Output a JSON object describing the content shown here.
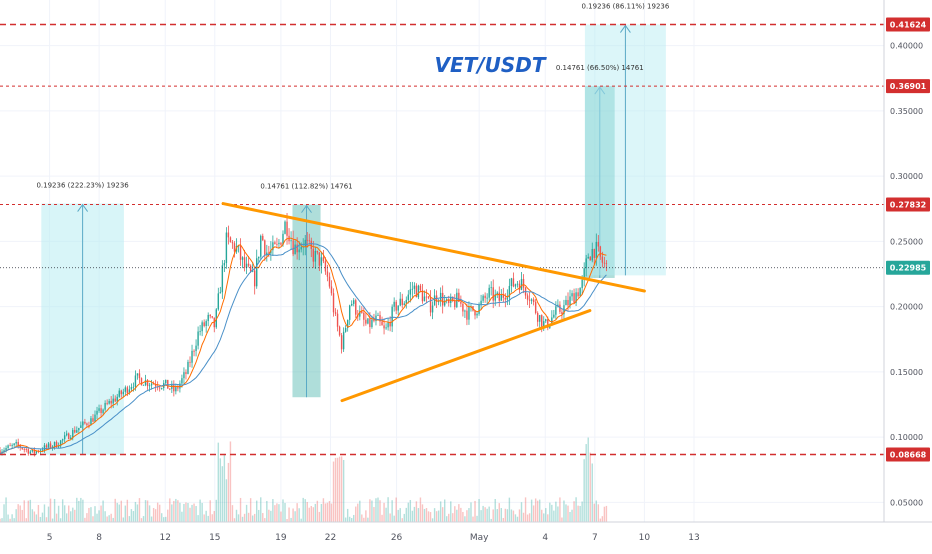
{
  "chart_data": {
    "type": "candlestick",
    "title": "VET/USDT",
    "current_price_label": "0.22985",
    "y_axis": {
      "ylim": [
        0.035,
        0.435
      ],
      "ticks": [
        {
          "value": 0.05,
          "label": "0.05000"
        },
        {
          "value": 0.1,
          "label": "0.10000"
        },
        {
          "value": 0.15,
          "label": "0.15000"
        },
        {
          "value": 0.2,
          "label": "0.20000"
        },
        {
          "value": 0.25,
          "label": "0.25000"
        },
        {
          "value": 0.3,
          "label": "0.30000"
        },
        {
          "value": 0.35,
          "label": "0.35000"
        },
        {
          "value": 0.4,
          "label": "0.40000"
        }
      ]
    },
    "x_axis": {
      "range": [
        2.0,
        55.5
      ],
      "ticks": [
        {
          "day": 5,
          "label": "5"
        },
        {
          "day": 8,
          "label": "8"
        },
        {
          "day": 12,
          "label": "12"
        },
        {
          "day": 15,
          "label": "15"
        },
        {
          "day": 19,
          "label": "19"
        },
        {
          "day": 22,
          "label": "22"
        },
        {
          "day": 26,
          "label": "26"
        },
        {
          "day": 31,
          "label": "May"
        },
        {
          "day": 35,
          "label": "4"
        },
        {
          "day": 38,
          "label": "7"
        },
        {
          "day": 41,
          "label": "10"
        },
        {
          "day": 44,
          "label": "13"
        }
      ]
    },
    "horizontal_levels": [
      {
        "value": 0.41624,
        "label": "0.41624",
        "style": "dashed"
      },
      {
        "value": 0.36901,
        "label": "0.36901",
        "style": "dotted"
      },
      {
        "value": 0.27832,
        "label": "0.27832",
        "style": "dotted"
      },
      {
        "value": 0.08668,
        "label": "0.08668",
        "style": "dashed"
      }
    ],
    "price_ranges": [
      {
        "label": "0.19236 (222.23%) 19236",
        "x_from": 4.5,
        "x_to": 9.5,
        "y_from": 0.0866,
        "y_to": 0.279,
        "fill": "#b2ebf2",
        "opacity": 0.5
      },
      {
        "label": "0.14761 (112.82%) 14761",
        "x_from": 19.7,
        "x_to": 21.4,
        "y_from": 0.1306,
        "y_to": 0.2782,
        "fill": "#4db6ac",
        "opacity": 0.45
      },
      {
        "label": "0.14761 (66.50%) 14761",
        "x_from": 37.4,
        "x_to": 39.2,
        "y_from": 0.222,
        "y_to": 0.369,
        "fill": "#4db6ac",
        "opacity": 0.45
      },
      {
        "label": "0.19236 (86.11%) 19236",
        "x_from": 37.4,
        "x_to": 42.3,
        "y_from": 0.224,
        "y_to": 0.4162,
        "fill": "#b2ebf2",
        "opacity": 0.45
      }
    ],
    "trendlines": [
      {
        "name": "triangle-upper",
        "from": [
          15.5,
          0.279
        ],
        "to": [
          41.0,
          0.212
        ]
      },
      {
        "name": "triangle-lower",
        "from": [
          22.7,
          0.128
        ],
        "to": [
          37.7,
          0.197
        ]
      }
    ],
    "price_path": [
      [
        2.0,
        0.09
      ],
      [
        3.0,
        0.094
      ],
      [
        4.0,
        0.088
      ],
      [
        4.5,
        0.091
      ],
      [
        5.5,
        0.095
      ],
      [
        6.5,
        0.105
      ],
      [
        7.5,
        0.113
      ],
      [
        8.5,
        0.125
      ],
      [
        9.5,
        0.135
      ],
      [
        10.3,
        0.145
      ],
      [
        11.0,
        0.142
      ],
      [
        12.0,
        0.14
      ],
      [
        12.6,
        0.135
      ],
      [
        13.3,
        0.15
      ],
      [
        14.0,
        0.18
      ],
      [
        14.6,
        0.19
      ],
      [
        15.0,
        0.185
      ],
      [
        15.7,
        0.25
      ],
      [
        16.3,
        0.245
      ],
      [
        16.8,
        0.23
      ],
      [
        17.4,
        0.22
      ],
      [
        17.8,
        0.255
      ],
      [
        18.2,
        0.24
      ],
      [
        18.8,
        0.245
      ],
      [
        19.3,
        0.265
      ],
      [
        19.8,
        0.245
      ],
      [
        20.4,
        0.25
      ],
      [
        20.9,
        0.24
      ],
      [
        21.4,
        0.235
      ],
      [
        21.9,
        0.22
      ],
      [
        22.3,
        0.19
      ],
      [
        22.7,
        0.17
      ],
      [
        23.2,
        0.205
      ],
      [
        23.7,
        0.195
      ],
      [
        24.2,
        0.185
      ],
      [
        24.8,
        0.19
      ],
      [
        25.3,
        0.18
      ],
      [
        25.9,
        0.2
      ],
      [
        26.5,
        0.205
      ],
      [
        27.0,
        0.215
      ],
      [
        27.5,
        0.21
      ],
      [
        28.0,
        0.2
      ],
      [
        28.5,
        0.21
      ],
      [
        29.1,
        0.2
      ],
      [
        29.7,
        0.205
      ],
      [
        30.3,
        0.195
      ],
      [
        31.0,
        0.2
      ],
      [
        31.6,
        0.21
      ],
      [
        32.2,
        0.205
      ],
      [
        32.8,
        0.215
      ],
      [
        33.4,
        0.22
      ],
      [
        34.0,
        0.21
      ],
      [
        34.5,
        0.195
      ],
      [
        35.0,
        0.185
      ],
      [
        35.6,
        0.195
      ],
      [
        36.2,
        0.2
      ],
      [
        36.8,
        0.21
      ],
      [
        37.2,
        0.215
      ],
      [
        37.6,
        0.24
      ],
      [
        38.0,
        0.245
      ],
      [
        38.4,
        0.235
      ],
      [
        38.7,
        0.23
      ]
    ]
  }
}
